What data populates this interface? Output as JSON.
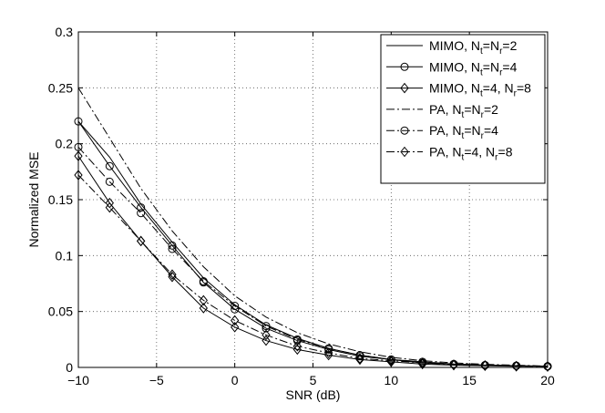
{
  "chart_data": {
    "type": "line",
    "title": "",
    "xlabel": "SNR (dB)",
    "ylabel": "Normalized MSE",
    "xlim": [
      -10,
      20
    ],
    "ylim": [
      0,
      0.3
    ],
    "xticks": [
      -10,
      -5,
      0,
      5,
      10,
      15,
      20
    ],
    "xtick_labels": [
      "−10",
      "−5",
      "0",
      "5",
      "10",
      "15",
      "20"
    ],
    "yticks": [
      0,
      0.05,
      0.1,
      0.15,
      0.2,
      0.25,
      0.3
    ],
    "ytick_labels": [
      "0",
      "0.05",
      "0.1",
      "0.15",
      "0.2",
      "0.25",
      "0.3"
    ],
    "grid": true,
    "legend_position": "top-right",
    "x": [
      -10,
      -8,
      -6,
      -4,
      -2,
      0,
      2,
      4,
      6,
      8,
      10,
      12,
      14,
      16,
      18,
      20
    ],
    "series": [
      {
        "name": "MIMO, Nt=Nr=2",
        "legend": {
          "pre": "MIMO, N",
          "sub1": "t",
          "mid": "=N",
          "sub2": "r",
          "post": "=2"
        },
        "linestyle": "solid",
        "marker": "none",
        "values": [
          0.22,
          0.188,
          0.146,
          0.112,
          0.08,
          0.056,
          0.038,
          0.026,
          0.017,
          0.011,
          0.007,
          0.005,
          0.003,
          0.002,
          0.0015,
          0.001
        ]
      },
      {
        "name": "MIMO, Nt=Nr=4",
        "legend": {
          "pre": "MIMO, N",
          "sub1": "t",
          "mid": "=N",
          "sub2": "r",
          "post": "=4"
        },
        "linestyle": "solid",
        "marker": "circle",
        "values": [
          0.22,
          0.18,
          0.143,
          0.109,
          0.076,
          0.052,
          0.035,
          0.024,
          0.016,
          0.01,
          0.007,
          0.004,
          0.003,
          0.002,
          0.0015,
          0.001
        ]
      },
      {
        "name": "MIMO, Nt=4, Nr=8",
        "legend": {
          "pre": "MIMO, N",
          "sub1": "t",
          "mid": "=4, N",
          "sub2": "r",
          "post": "=8"
        },
        "linestyle": "solid",
        "marker": "diamond",
        "values": [
          0.189,
          0.147,
          0.113,
          0.081,
          0.053,
          0.036,
          0.024,
          0.016,
          0.011,
          0.007,
          0.005,
          0.003,
          0.002,
          0.0015,
          0.001,
          0.001
        ]
      },
      {
        "name": "PA, Nt=Nr=2",
        "legend": {
          "pre": "PA, N",
          "sub1": "t",
          "mid": "=N",
          "sub2": "r",
          "post": "=2"
        },
        "linestyle": "dashdot",
        "marker": "none",
        "values": [
          0.25,
          0.205,
          0.16,
          0.122,
          0.09,
          0.064,
          0.045,
          0.031,
          0.021,
          0.014,
          0.009,
          0.006,
          0.004,
          0.0028,
          0.002,
          0.0012
        ]
      },
      {
        "name": "PA, Nt=Nr=4",
        "legend": {
          "pre": "PA, N",
          "sub1": "t",
          "mid": "=N",
          "sub2": "r",
          "post": "=4"
        },
        "linestyle": "dashdot",
        "marker": "circle",
        "values": [
          0.197,
          0.166,
          0.138,
          0.106,
          0.077,
          0.055,
          0.037,
          0.025,
          0.017,
          0.011,
          0.007,
          0.005,
          0.003,
          0.002,
          0.0015,
          0.001
        ]
      },
      {
        "name": "PA, Nt=4, Nr=8",
        "legend": {
          "pre": "PA, N",
          "sub1": "t",
          "mid": "=4, N",
          "sub2": "r",
          "post": "=8"
        },
        "linestyle": "dashdot",
        "marker": "diamond",
        "values": [
          0.172,
          0.143,
          0.113,
          0.083,
          0.06,
          0.042,
          0.029,
          0.019,
          0.013,
          0.008,
          0.006,
          0.004,
          0.0025,
          0.0018,
          0.0012,
          0.0008
        ]
      }
    ]
  }
}
